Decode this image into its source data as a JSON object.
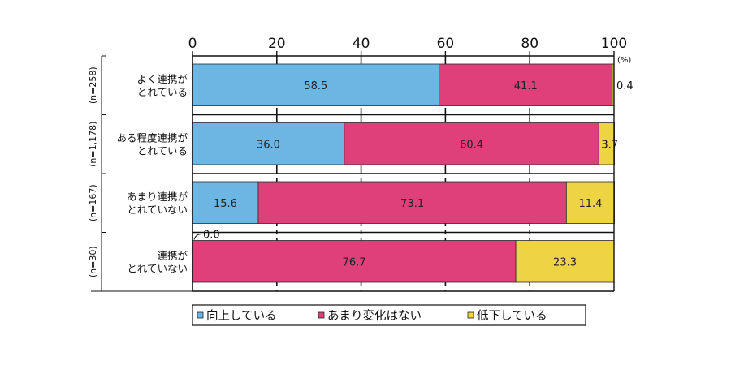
{
  "chart_data": {
    "type": "bar",
    "orientation": "horizontal",
    "stacked": true,
    "unit": "(%)",
    "xlim": [
      0,
      100
    ],
    "xticks": [
      "0",
      "20",
      "40",
      "60",
      "80",
      "100"
    ],
    "grid": true,
    "legend_placement": "bottom",
    "categories": [
      {
        "lines": [
          "よく連携が",
          "とれている"
        ],
        "n": "(n=258)"
      },
      {
        "lines": [
          "ある程度連携が",
          "とれている"
        ],
        "n": "(n=1,178)"
      },
      {
        "lines": [
          "あまり連携が",
          "とれていない"
        ],
        "n": "(n=167)"
      },
      {
        "lines": [
          "連携が",
          "とれていない"
        ],
        "n": "(n=30)"
      }
    ],
    "series": [
      {
        "name": "向上している",
        "color": "#6cb6e4",
        "values": [
          58.5,
          36.0,
          15.6,
          0.0
        ],
        "labels": [
          "58.5",
          "36.0",
          "15.6",
          "0.0"
        ]
      },
      {
        "name": "あまり変化はない",
        "color": "#e0407a",
        "values": [
          41.1,
          60.4,
          73.1,
          76.7
        ],
        "labels": [
          "41.1",
          "60.4",
          "73.1",
          "76.7"
        ]
      },
      {
        "name": "低下している",
        "color": "#eed445",
        "values": [
          0.4,
          3.7,
          11.4,
          23.3
        ],
        "labels": [
          "0.4",
          "3.7",
          "11.4",
          "23.3"
        ]
      }
    ]
  }
}
